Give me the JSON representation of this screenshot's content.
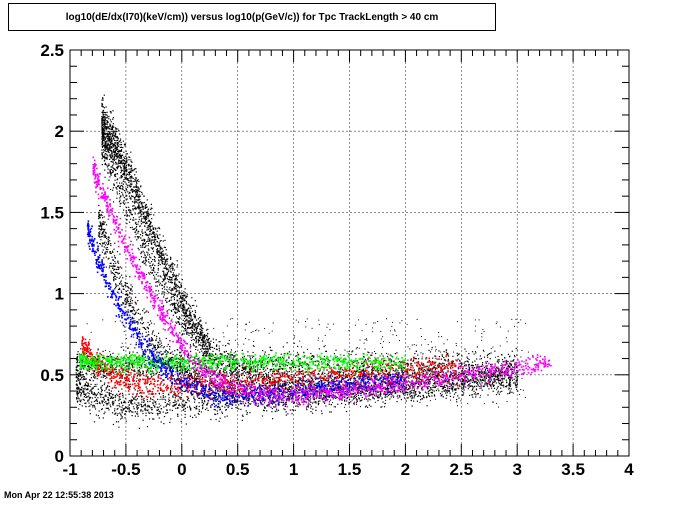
{
  "header": {
    "title": "log10(dE/dx(I70)(keV/cm)) versus log10(p(GeV/c)) for Tpc TrackLength > 40 cm"
  },
  "footer": {
    "timestamp": "Mon Apr 22 12:55:38 2013"
  },
  "chart_data": {
    "type": "scatter",
    "title": "log10(dE/dx(I70)(keV/cm)) versus log10(p(GeV/c)) for Tpc TrackLength > 40 cm",
    "xlabel": "",
    "ylabel": "",
    "xlim": [
      -1,
      4
    ],
    "ylim": [
      0,
      2.5
    ],
    "x_ticks": [
      "-1",
      "-0.5",
      "0",
      "0.5",
      "1",
      "1.5",
      "2",
      "2.5",
      "3",
      "3.5",
      "4"
    ],
    "y_ticks": [
      "0",
      "0.5",
      "1",
      "1.5",
      "2",
      "2.5"
    ],
    "grid": true,
    "series": [
      {
        "color": "#000000",
        "bands": [
          {
            "kind": "electron-like",
            "x": [
              -0.95,
              -0.7,
              -0.5,
              -0.3,
              0,
              0.5,
              1,
              1.5,
              2,
              2.5,
              3
            ],
            "y": [
              0.55,
              0.55,
              0.56,
              0.56,
              0.56,
              0.56,
              0.56,
              0.56,
              0.56,
              0.56,
              0.56
            ]
          },
          {
            "kind": "pion-like",
            "x": [
              -0.95,
              -0.8,
              -0.6,
              -0.4,
              -0.2,
              0,
              0.5,
              1,
              1.5,
              2,
              2.5,
              3
            ],
            "y": [
              0.42,
              0.36,
              0.33,
              0.32,
              0.32,
              0.33,
              0.35,
              0.37,
              0.4,
              0.43,
              0.46,
              0.49
            ]
          },
          {
            "kind": "kaon-like",
            "x": [
              -0.75,
              -0.6,
              -0.45,
              -0.3,
              -0.15,
              0,
              0.2,
              0.5,
              1,
              2,
              3
            ],
            "y": [
              1.45,
              1.15,
              0.92,
              0.74,
              0.62,
              0.54,
              0.46,
              0.4,
              0.4,
              0.45,
              0.5
            ]
          },
          {
            "kind": "proton-like",
            "x": [
              -0.72,
              -0.6,
              -0.45,
              -0.3,
              -0.15,
              0,
              0.2,
              0.4,
              0.7,
              1,
              2,
              3
            ],
            "y": [
              1.95,
              1.72,
              1.45,
              1.2,
              1.0,
              0.84,
              0.68,
              0.56,
              0.47,
              0.43,
              0.45,
              0.5
            ]
          },
          {
            "kind": "deuteron-like",
            "x": [
              -0.72,
              -0.6,
              -0.45,
              -0.3,
              -0.15,
              0,
              0.1,
              0.25
            ],
            "y": [
              2.05,
              1.9,
              1.68,
              1.42,
              1.18,
              0.96,
              0.82,
              0.66
            ]
          }
        ]
      },
      {
        "color": "#ff0000",
        "bands": [
          {
            "kind": "pion-like",
            "x": [
              -0.9,
              -0.8,
              -0.65,
              -0.5,
              -0.35,
              -0.2,
              0,
              0.3,
              0.6,
              1,
              1.5,
              2,
              2.5
            ],
            "y": [
              0.7,
              0.6,
              0.52,
              0.47,
              0.45,
              0.44,
              0.44,
              0.45,
              0.46,
              0.48,
              0.51,
              0.53,
              0.55
            ]
          }
        ]
      },
      {
        "color": "#00ff00",
        "bands": [
          {
            "kind": "electron-like",
            "x": [
              -0.92,
              -0.7,
              -0.5,
              -0.3,
              -0.1,
              0.2,
              0.5,
              1,
              1.5,
              2
            ],
            "y": [
              0.59,
              0.58,
              0.58,
              0.58,
              0.58,
              0.58,
              0.58,
              0.58,
              0.58,
              0.58
            ]
          }
        ]
      },
      {
        "color": "#0000ff",
        "bands": [
          {
            "kind": "kaon-like",
            "x": [
              -0.85,
              -0.75,
              -0.65,
              -0.55,
              -0.45,
              -0.35,
              -0.25,
              -0.15,
              0,
              0.15,
              0.3,
              0.5,
              1,
              1.5,
              2
            ],
            "y": [
              1.42,
              1.2,
              1.03,
              0.9,
              0.79,
              0.69,
              0.6,
              0.53,
              0.46,
              0.41,
              0.38,
              0.37,
              0.4,
              0.44,
              0.48
            ]
          }
        ]
      },
      {
        "color": "#ff00ff",
        "bands": [
          {
            "kind": "proton-like",
            "x": [
              -0.8,
              -0.7,
              -0.6,
              -0.5,
              -0.4,
              -0.3,
              -0.2,
              -0.1,
              0,
              0.1,
              0.2,
              0.35,
              0.5,
              0.7,
              1,
              1.5,
              2,
              2.5,
              3,
              3.3
            ],
            "y": [
              1.78,
              1.6,
              1.44,
              1.29,
              1.15,
              1.02,
              0.9,
              0.79,
              0.68,
              0.59,
              0.52,
              0.45,
              0.41,
              0.38,
              0.38,
              0.41,
              0.45,
              0.5,
              0.55,
              0.58
            ]
          }
        ]
      }
    ]
  }
}
